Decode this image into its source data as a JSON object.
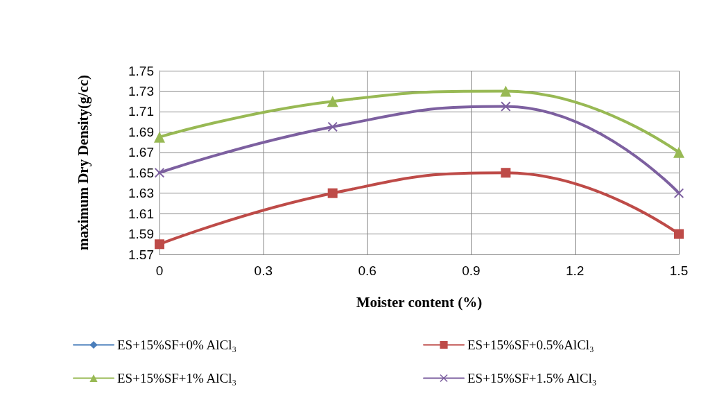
{
  "chart_data": {
    "type": "line",
    "xlabel": "Moister content (%)",
    "ylabel": "maximum Dry Density(g/cc)",
    "x": [
      0,
      0.5,
      1,
      1.5
    ],
    "series": [
      {
        "name": "ES+15%SF+0% AlCl₃",
        "color": "#4a7ebb",
        "marker": "diamond",
        "values": [
          null,
          null,
          null,
          null
        ]
      },
      {
        "name": "ES+15%SF+0.5%AlCl₃",
        "color": "#be4b48",
        "marker": "square",
        "values": [
          1.58,
          1.63,
          1.65,
          1.59
        ]
      },
      {
        "name": "ES+15%SF+1% AlCl₃",
        "color": "#98b954",
        "marker": "triangle",
        "values": [
          1.685,
          1.72,
          1.73,
          1.67
        ]
      },
      {
        "name": "ES+15%SF+1.5% AlCl₃",
        "color": "#7d60a0",
        "marker": "cross",
        "values": [
          1.65,
          1.695,
          1.715,
          1.63
        ]
      }
    ],
    "xlim": [
      0,
      1.5
    ],
    "xticks": [
      0,
      0.3,
      0.6,
      0.9,
      1.2,
      1.5
    ],
    "ylim": [
      1.57,
      1.75
    ],
    "yticks": [
      1.57,
      1.59,
      1.61,
      1.63,
      1.65,
      1.67,
      1.69,
      1.71,
      1.73,
      1.75
    ],
    "grid": true,
    "legend": "bottom",
    "line_style": "solid"
  }
}
